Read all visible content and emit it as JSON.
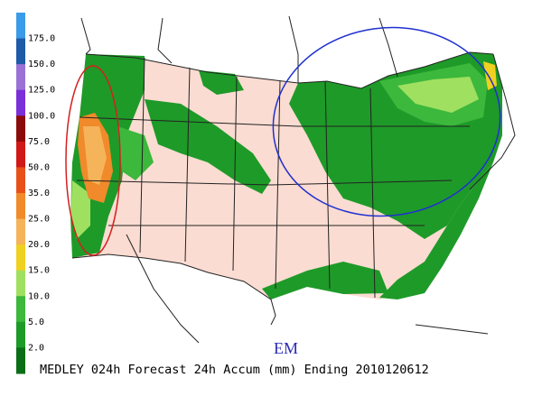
{
  "colorbar": {
    "labels": [
      "175.0",
      "150.0",
      "125.0",
      "100.0",
      "75.0",
      "50.0",
      "35.0",
      "25.0",
      "20.0",
      "15.0",
      "10.0",
      "5.0",
      "2.0"
    ],
    "colors": [
      "#3a9be8",
      "#1e5aa8",
      "#9a72d6",
      "#7b2fd8",
      "#8b0a0a",
      "#d01818",
      "#e8501a",
      "#f08a2a",
      "#f5b45a",
      "#f0d020",
      "#a0e060",
      "#3cb83c",
      "#1e9a28",
      "#0a6e18"
    ]
  },
  "annotation": "EM",
  "footer": "MEDLEY 024h Forecast 24h Accum (mm) Ending 2010120612"
}
